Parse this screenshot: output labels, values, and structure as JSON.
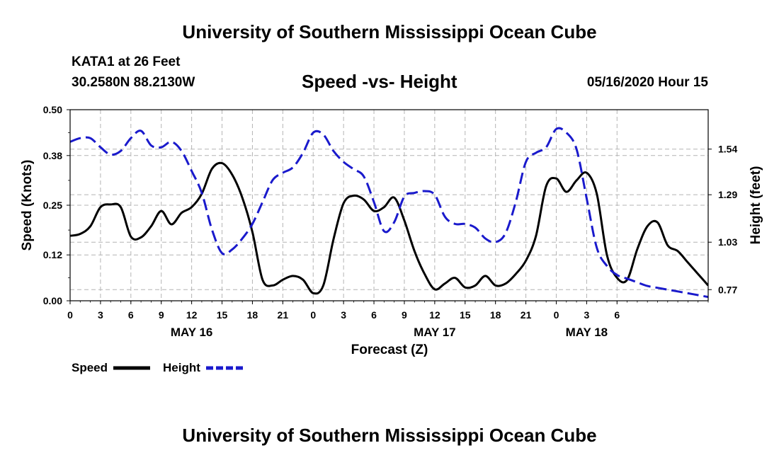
{
  "header": {
    "title": "University of Southern Mississippi Ocean Cube",
    "station": "KATA1 at 26 Feet",
    "coords": "30.2580N 88.2130W",
    "chart_title": "Speed -vs- Height",
    "issued": "05/16/2020 Hour 15"
  },
  "footer": {
    "title": "University of Southern Mississippi Ocean Cube"
  },
  "legend": {
    "speed_label": "Speed",
    "height_label": "Height"
  },
  "colors": {
    "speed": "#000000",
    "height": "#1a1acc",
    "grid": "#b4b4b4"
  },
  "chart_data": {
    "type": "line",
    "title": "Speed -vs- Height",
    "xlabel": "Forecast (Z)",
    "ylabel": "Speed (Knots)",
    "y2label": "Height (feet)",
    "xlim": [
      0,
      63
    ],
    "ylim": [
      0,
      0.5
    ],
    "y2lim": [
      0.709,
      1.756
    ],
    "yticks": [
      "0.00",
      "0.12",
      "0.25",
      "0.38",
      "0.50"
    ],
    "y2ticks": [
      {
        "value": 0.77,
        "label": "0.77"
      },
      {
        "value": 1.03,
        "label": "1.03"
      },
      {
        "value": 1.29,
        "label": "1.29"
      },
      {
        "value": 1.54,
        "label": "1.54"
      }
    ],
    "xticks": [
      {
        "x": 0,
        "label": "0"
      },
      {
        "x": 3,
        "label": "3"
      },
      {
        "x": 6,
        "label": "6"
      },
      {
        "x": 9,
        "label": "9"
      },
      {
        "x": 12,
        "label": "12"
      },
      {
        "x": 15,
        "label": "15"
      },
      {
        "x": 18,
        "label": "18"
      },
      {
        "x": 21,
        "label": "21"
      },
      {
        "x": 24,
        "label": "0"
      },
      {
        "x": 27,
        "label": "3"
      },
      {
        "x": 30,
        "label": "6"
      },
      {
        "x": 33,
        "label": "9"
      },
      {
        "x": 36,
        "label": "12"
      },
      {
        "x": 39,
        "label": "15"
      },
      {
        "x": 42,
        "label": "18"
      },
      {
        "x": 45,
        "label": "21"
      },
      {
        "x": 48,
        "label": "0"
      },
      {
        "x": 51,
        "label": "3"
      },
      {
        "x": 54,
        "label": "6"
      }
    ],
    "date_labels": [
      {
        "x": 12,
        "label": "MAY 16"
      },
      {
        "x": 36,
        "label": "MAY 17"
      },
      {
        "x": 51,
        "label": "MAY 18"
      }
    ],
    "series": [
      {
        "name": "Speed",
        "axis": "left",
        "x": [
          0,
          1,
          2,
          3,
          4,
          5,
          6,
          7,
          8,
          9,
          10,
          11,
          12,
          13,
          14,
          15,
          16,
          17,
          18,
          19,
          20,
          21,
          22,
          23,
          24,
          25,
          26,
          27,
          28,
          29,
          30,
          31,
          32,
          33,
          34,
          35,
          36,
          37,
          38,
          39,
          40,
          41,
          42,
          43,
          44,
          45,
          46,
          47,
          48,
          49,
          50,
          51,
          52,
          53,
          54,
          55,
          56,
          57,
          58,
          59,
          60,
          61,
          62,
          63
        ],
        "values": [
          0.17,
          0.175,
          0.195,
          0.245,
          0.252,
          0.245,
          0.168,
          0.166,
          0.195,
          0.235,
          0.2,
          0.23,
          0.245,
          0.28,
          0.345,
          0.36,
          0.33,
          0.27,
          0.18,
          0.055,
          0.04,
          0.055,
          0.065,
          0.055,
          0.02,
          0.04,
          0.16,
          0.255,
          0.275,
          0.265,
          0.235,
          0.245,
          0.27,
          0.21,
          0.13,
          0.07,
          0.03,
          0.045,
          0.06,
          0.035,
          0.04,
          0.065,
          0.04,
          0.045,
          0.07,
          0.105,
          0.17,
          0.3,
          0.32,
          0.285,
          0.315,
          0.335,
          0.28,
          0.12,
          0.06,
          0.055,
          0.135,
          0.195,
          0.205,
          0.145,
          0.13,
          0.1,
          0.07,
          0.04
        ]
      },
      {
        "name": "Height",
        "axis": "right",
        "x": [
          0,
          1,
          2,
          3,
          4,
          5,
          6,
          7,
          8,
          9,
          10,
          11,
          12,
          13,
          14,
          15,
          16,
          17,
          18,
          19,
          20,
          21,
          22,
          23,
          24,
          25,
          26,
          27,
          28,
          29,
          30,
          31,
          32,
          33,
          34,
          35,
          36,
          37,
          38,
          39,
          40,
          41,
          42,
          43,
          44,
          45,
          46,
          47,
          48,
          49,
          50,
          51,
          52,
          53,
          54,
          55,
          56,
          57,
          58,
          59,
          60,
          61,
          62,
          63
        ],
        "values": [
          1.58,
          1.6,
          1.6,
          1.55,
          1.51,
          1.53,
          1.6,
          1.64,
          1.56,
          1.55,
          1.58,
          1.53,
          1.42,
          1.3,
          1.1,
          0.97,
          0.99,
          1.05,
          1.13,
          1.25,
          1.37,
          1.41,
          1.44,
          1.52,
          1.63,
          1.62,
          1.53,
          1.47,
          1.43,
          1.39,
          1.25,
          1.09,
          1.14,
          1.28,
          1.3,
          1.31,
          1.29,
          1.17,
          1.13,
          1.13,
          1.11,
          1.05,
          1.03,
          1.08,
          1.25,
          1.47,
          1.52,
          1.55,
          1.65,
          1.63,
          1.54,
          1.27,
          1.0,
          0.9,
          0.85,
          0.83,
          0.81,
          0.79,
          0.78,
          0.77,
          0.76,
          0.75,
          0.74,
          0.73
        ]
      }
    ]
  }
}
